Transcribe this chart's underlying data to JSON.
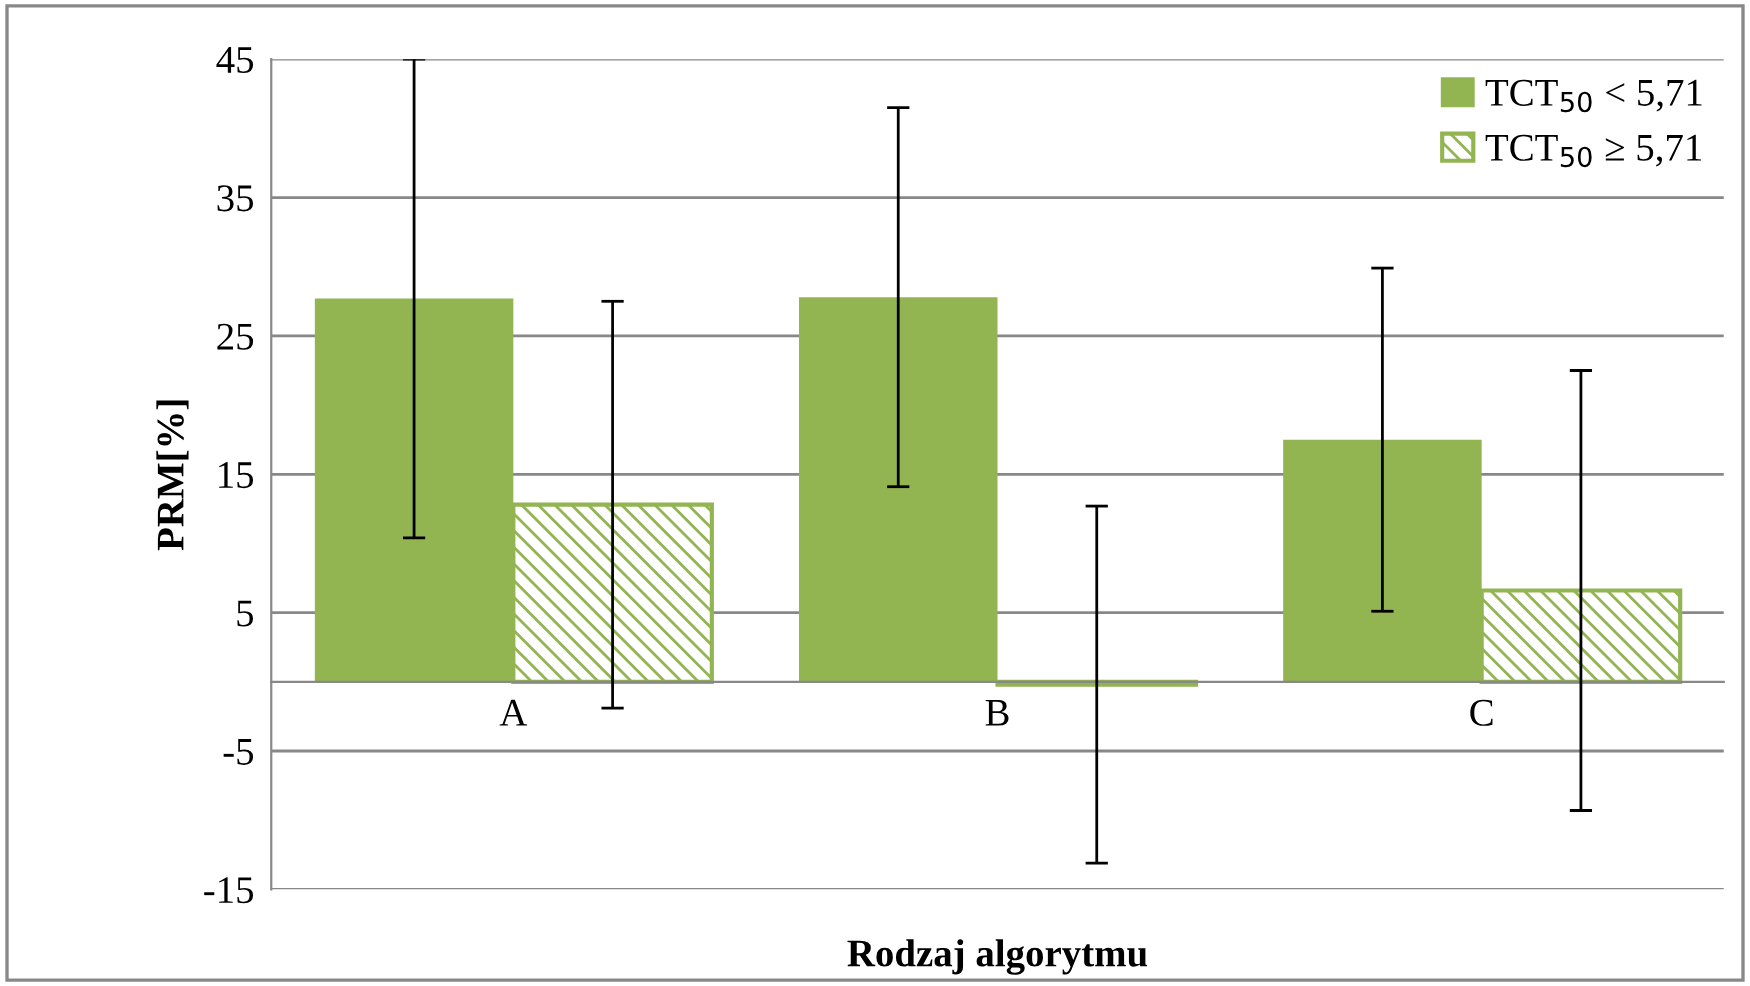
{
  "chart_data": {
    "type": "bar",
    "xlabel": "Rodzaj algorytmu",
    "ylabel": "PRM[%]",
    "categories": [
      "A",
      "B",
      "C"
    ],
    "series": [
      {
        "name": "TCT$_{50}$ < 5,71",
        "color": "#92b552",
        "values": [
          27.7,
          27.8,
          17.5
        ],
        "errors": [
          17.3,
          13.7,
          12.4
        ]
      },
      {
        "name": "TCT$_{50}$ ≥ 5,71",
        "color": "#92b552",
        "values": [
          12.8,
          -0.2,
          6.6
        ],
        "errors": [
          14.7,
          12.9,
          15.9
        ]
      }
    ],
    "ylim": [
      -15,
      45
    ],
    "yticks": [
      -15,
      -5,
      5,
      15,
      25,
      35,
      45
    ],
    "grid": "y",
    "legend": "top right"
  }
}
